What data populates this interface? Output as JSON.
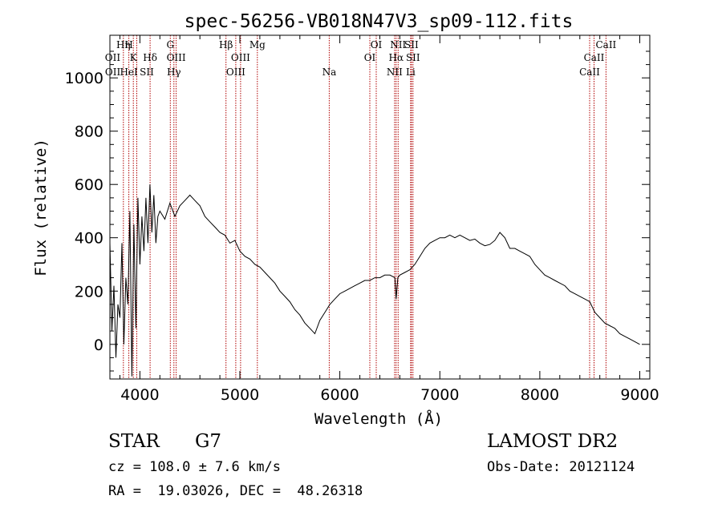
{
  "chart_data": {
    "type": "line",
    "title": "spec-56256-VB018N47V3_sp09-112.fits",
    "xlabel": "Wavelength (Å)",
    "ylabel": "Flux (relative)",
    "xlim": [
      3700,
      9100
    ],
    "ylim": [
      -130,
      1160
    ],
    "x_ticks": [
      4000,
      5000,
      6000,
      7000,
      8000,
      9000
    ],
    "y_ticks": [
      0,
      200,
      400,
      600,
      800,
      1000
    ],
    "line_color": "#000000",
    "marker_color": "#b00000",
    "grid": false,
    "series": [
      {
        "x": [
          3700,
          3720,
          3740,
          3760,
          3780,
          3800,
          3820,
          3840,
          3860,
          3880,
          3900,
          3920,
          3940,
          3960,
          3980,
          4000,
          4020,
          4040,
          4060,
          4080,
          4100,
          4120,
          4140,
          4160,
          4180,
          4200,
          4250,
          4300,
          4350,
          4400,
          4450,
          4500,
          4550,
          4600,
          4650,
          4700,
          4750,
          4800,
          4850,
          4900,
          4950,
          5000,
          5050,
          5100,
          5150,
          5200,
          5250,
          5300,
          5350,
          5400,
          5450,
          5500,
          5550,
          5600,
          5650,
          5700,
          5750,
          5800,
          5850,
          5900,
          5950,
          6000,
          6050,
          6100,
          6150,
          6200,
          6250,
          6300,
          6350,
          6400,
          6450,
          6500,
          6550,
          6563,
          6580,
          6600,
          6650,
          6700,
          6750,
          6800,
          6850,
          6900,
          6950,
          7000,
          7050,
          7100,
          7150,
          7200,
          7250,
          7300,
          7350,
          7400,
          7450,
          7500,
          7550,
          7600,
          7650,
          7700,
          7750,
          7800,
          7850,
          7900,
          7950,
          8000,
          8050,
          8100,
          8150,
          8200,
          8250,
          8300,
          8350,
          8400,
          8450,
          8500,
          8550,
          8600,
          8650,
          8700,
          8750,
          8800,
          8850,
          8900,
          8950,
          9000
        ],
        "y": [
          380,
          50,
          220,
          -50,
          150,
          100,
          380,
          0,
          250,
          150,
          500,
          -120,
          450,
          60,
          550,
          300,
          480,
          350,
          550,
          380,
          600,
          420,
          560,
          380,
          480,
          500,
          470,
          530,
          480,
          520,
          540,
          560,
          540,
          520,
          480,
          460,
          440,
          420,
          410,
          380,
          390,
          350,
          330,
          320,
          300,
          290,
          270,
          250,
          230,
          200,
          180,
          160,
          130,
          110,
          80,
          60,
          40,
          90,
          120,
          150,
          170,
          190,
          200,
          210,
          220,
          230,
          240,
          240,
          250,
          250,
          260,
          260,
          250,
          170,
          250,
          260,
          270,
          280,
          300,
          330,
          360,
          380,
          390,
          400,
          400,
          410,
          400,
          410,
          400,
          390,
          395,
          380,
          370,
          375,
          390,
          420,
          400,
          360,
          360,
          350,
          340,
          330,
          300,
          280,
          260,
          250,
          240,
          230,
          220,
          200,
          190,
          180,
          170,
          160,
          120,
          100,
          80,
          70,
          60,
          40,
          30,
          20,
          10,
          0
        ]
      }
    ],
    "lines": [
      {
        "label": "Hη",
        "x": 3835
      },
      {
        "label": "H",
        "x": 3889
      },
      {
        "label": "K",
        "x": 3934
      },
      {
        "label": "H",
        "x": 3969
      },
      {
        "label": "Hδ",
        "x": 4102
      },
      {
        "label": "G",
        "x": 4304
      },
      {
        "label": "Hγ",
        "x": 4340
      },
      {
        "label": "OIII",
        "x": 4363
      },
      {
        "label": "Hβ",
        "x": 4861
      },
      {
        "label": "OIII",
        "x": 4959
      },
      {
        "label": "OIII",
        "x": 5007
      },
      {
        "label": "Mg",
        "x": 5175
      },
      {
        "label": "Na",
        "x": 5894
      },
      {
        "label": "OI",
        "x": 6300
      },
      {
        "label": "OI",
        "x": 6364
      },
      {
        "label": "NII",
        "x": 6548
      },
      {
        "label": "Hα",
        "x": 6563
      },
      {
        "label": "NII",
        "x": 6583
      },
      {
        "label": "Li",
        "x": 6708
      },
      {
        "label": "SII",
        "x": 6716
      },
      {
        "label": "SII",
        "x": 6731
      },
      {
        "label": "CaII",
        "x": 8498
      },
      {
        "label": "CaII",
        "x": 8542
      },
      {
        "label": "CaII",
        "x": 8662
      }
    ],
    "line_labels": [
      {
        "text": "Hη",
        "x": 3835,
        "row": 1
      },
      {
        "text": "H",
        "x": 3889,
        "row": 1
      },
      {
        "text": "OII",
        "x": 3727,
        "row": 2
      },
      {
        "text": "K",
        "x": 3934,
        "row": 2
      },
      {
        "text": "Hδ",
        "x": 4102,
        "row": 2
      },
      {
        "text": "OII",
        "x": 3729,
        "row": 3
      },
      {
        "text": "HeI",
        "x": 3889,
        "row": 3
      },
      {
        "text": "SII",
        "x": 4069,
        "row": 3
      },
      {
        "text": "G",
        "x": 4304,
        "row": 1
      },
      {
        "text": "OIII",
        "x": 4363,
        "row": 2
      },
      {
        "text": "Hγ",
        "x": 4340,
        "row": 3
      },
      {
        "text": "Hβ",
        "x": 4861,
        "row": 1
      },
      {
        "text": "OIII",
        "x": 5007,
        "row": 2
      },
      {
        "text": "OIII",
        "x": 4959,
        "row": 3
      },
      {
        "text": "Mg",
        "x": 5175,
        "row": 1
      },
      {
        "text": "Na",
        "x": 5894,
        "row": 3
      },
      {
        "text": "OI",
        "x": 6364,
        "row": 1
      },
      {
        "text": "OI",
        "x": 6300,
        "row": 2
      },
      {
        "text": "NII",
        "x": 6583,
        "row": 1
      },
      {
        "text": "SII",
        "x": 6716,
        "row": 1
      },
      {
        "text": "Hα",
        "x": 6563,
        "row": 2
      },
      {
        "text": "SII",
        "x": 6731,
        "row": 2
      },
      {
        "text": "NII",
        "x": 6548,
        "row": 3
      },
      {
        "text": "Li",
        "x": 6708,
        "row": 3
      },
      {
        "text": "CaII",
        "x": 8662,
        "row": 1
      },
      {
        "text": "CaII",
        "x": 8542,
        "row": 2
      },
      {
        "text": "CaII",
        "x": 8498,
        "row": 3
      }
    ]
  },
  "info": {
    "object_class": "STAR",
    "subclass": "G7",
    "survey": "LAMOST DR2",
    "redshift_line": "cz = 108.0 ± 7.6 km/s",
    "obs_date_line": "Obs-Date: 20121124",
    "coords_line": "RA =  19.03026, DEC =  48.26318"
  }
}
